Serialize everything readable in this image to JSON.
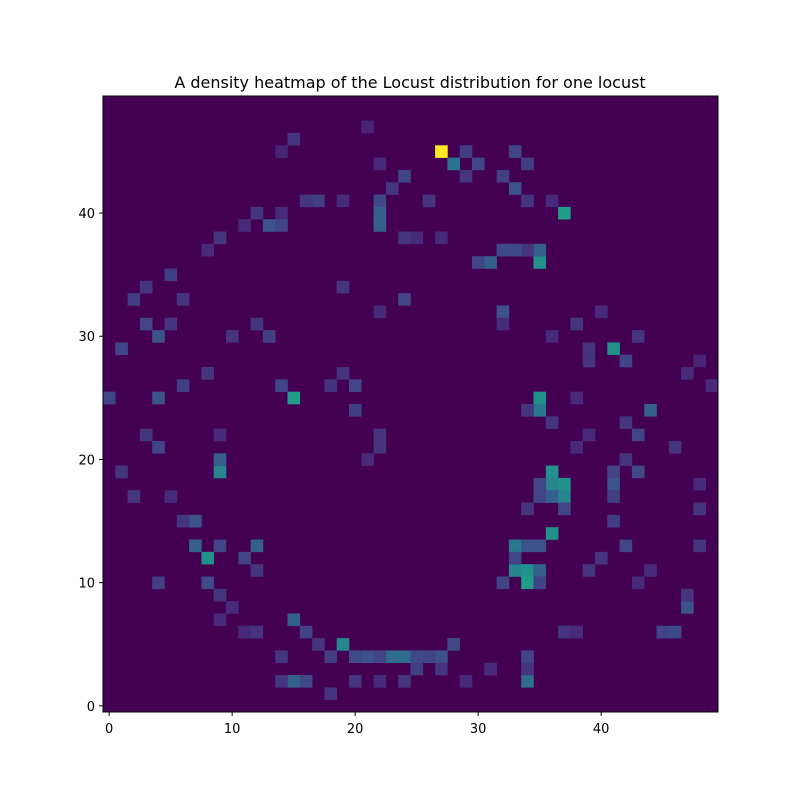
{
  "chart_data": {
    "type": "heatmap",
    "title": "A density heatmap of the Locust distribution for one locust",
    "xlabel": "",
    "ylabel": "",
    "grid_size": [
      50,
      50
    ],
    "xlim": [
      -0.5,
      49.5
    ],
    "ylim": [
      -0.5,
      49.5
    ],
    "xticks": [
      0,
      10,
      20,
      30,
      40
    ],
    "yticks": [
      0,
      10,
      20,
      30,
      40
    ],
    "colormap": "viridis",
    "value_range": [
      0,
      1
    ],
    "background_value": 0,
    "grid": false,
    "colors": {
      "low": "#440154",
      "high": "#fde725"
    },
    "cells": [
      [
        27,
        45,
        1.0
      ],
      [
        28,
        44,
        0.38
      ],
      [
        29,
        45,
        0.18
      ],
      [
        30,
        44,
        0.2
      ],
      [
        33,
        45,
        0.2
      ],
      [
        34,
        44,
        0.18
      ],
      [
        29,
        43,
        0.15
      ],
      [
        32,
        43,
        0.18
      ],
      [
        24,
        43,
        0.2
      ],
      [
        23,
        42,
        0.15
      ],
      [
        33,
        42,
        0.25
      ],
      [
        22,
        41,
        0.22
      ],
      [
        22,
        40,
        0.3
      ],
      [
        22,
        39,
        0.3
      ],
      [
        19,
        41,
        0.12
      ],
      [
        26,
        41,
        0.15
      ],
      [
        37,
        40,
        0.55
      ],
      [
        34,
        41,
        0.15
      ],
      [
        36,
        41,
        0.12
      ],
      [
        35,
        36,
        0.5
      ],
      [
        35,
        37,
        0.3
      ],
      [
        34,
        37,
        0.15
      ],
      [
        31,
        36,
        0.3
      ],
      [
        32,
        37,
        0.22
      ],
      [
        33,
        37,
        0.22
      ],
      [
        30,
        36,
        0.2
      ],
      [
        24,
        38,
        0.15
      ],
      [
        25,
        38,
        0.12
      ],
      [
        27,
        38,
        0.12
      ],
      [
        17,
        41,
        0.18
      ],
      [
        16,
        41,
        0.15
      ],
      [
        14,
        40,
        0.12
      ],
      [
        13,
        39,
        0.25
      ],
      [
        14,
        39,
        0.2
      ],
      [
        12,
        40,
        0.15
      ],
      [
        11,
        39,
        0.12
      ],
      [
        9,
        38,
        0.15
      ],
      [
        8,
        37,
        0.12
      ],
      [
        15,
        46,
        0.15
      ],
      [
        14,
        45,
        0.1
      ],
      [
        22,
        44,
        0.12
      ],
      [
        21,
        47,
        0.1
      ],
      [
        24,
        33,
        0.2
      ],
      [
        32,
        32,
        0.25
      ],
      [
        19,
        34,
        0.15
      ],
      [
        22,
        32,
        0.12
      ],
      [
        41,
        29,
        0.5
      ],
      [
        42,
        28,
        0.2
      ],
      [
        43,
        30,
        0.15
      ],
      [
        39,
        29,
        0.15
      ],
      [
        47,
        27,
        0.12
      ],
      [
        48,
        28,
        0.1
      ],
      [
        35,
        25,
        0.5
      ],
      [
        35,
        24,
        0.4
      ],
      [
        34,
        24,
        0.15
      ],
      [
        36,
        23,
        0.15
      ],
      [
        44,
        24,
        0.3
      ],
      [
        43,
        22,
        0.2
      ],
      [
        46,
        21,
        0.15
      ],
      [
        42,
        23,
        0.15
      ],
      [
        15,
        25,
        0.55
      ],
      [
        14,
        26,
        0.2
      ],
      [
        18,
        26,
        0.15
      ],
      [
        19,
        27,
        0.15
      ],
      [
        20,
        26,
        0.2
      ],
      [
        20,
        24,
        0.18
      ],
      [
        4,
        25,
        0.25
      ],
      [
        0,
        25,
        0.2
      ],
      [
        6,
        26,
        0.18
      ],
      [
        9,
        19,
        0.45
      ],
      [
        9,
        20,
        0.3
      ],
      [
        9,
        22,
        0.12
      ],
      [
        3,
        22,
        0.15
      ],
      [
        4,
        21,
        0.2
      ],
      [
        22,
        21,
        0.15
      ],
      [
        22,
        22,
        0.15
      ],
      [
        21,
        20,
        0.12
      ],
      [
        36,
        19,
        0.5
      ],
      [
        36,
        18,
        0.45
      ],
      [
        37,
        18,
        0.5
      ],
      [
        37,
        17,
        0.45
      ],
      [
        36,
        17,
        0.3
      ],
      [
        35,
        17,
        0.2
      ],
      [
        35,
        18,
        0.2
      ],
      [
        34,
        16,
        0.15
      ],
      [
        37,
        16,
        0.2
      ],
      [
        41,
        19,
        0.2
      ],
      [
        41,
        18,
        0.25
      ],
      [
        41,
        17,
        0.18
      ],
      [
        43,
        19,
        0.22
      ],
      [
        42,
        20,
        0.15
      ],
      [
        41,
        15,
        0.18
      ],
      [
        36,
        14,
        0.5
      ],
      [
        35,
        13,
        0.25
      ],
      [
        33,
        13,
        0.4
      ],
      [
        34,
        13,
        0.25
      ],
      [
        42,
        13,
        0.2
      ],
      [
        33,
        11,
        0.45
      ],
      [
        34,
        11,
        0.5
      ],
      [
        35,
        11,
        0.3
      ],
      [
        34,
        10,
        0.55
      ],
      [
        35,
        10,
        0.2
      ],
      [
        32,
        10,
        0.2
      ],
      [
        33,
        12,
        0.2
      ],
      [
        39,
        11,
        0.15
      ],
      [
        40,
        12,
        0.15
      ],
      [
        8,
        12,
        0.5
      ],
      [
        7,
        13,
        0.3
      ],
      [
        9,
        13,
        0.2
      ],
      [
        12,
        13,
        0.3
      ],
      [
        11,
        12,
        0.2
      ],
      [
        7,
        15,
        0.25
      ],
      [
        8,
        10,
        0.22
      ],
      [
        9,
        9,
        0.15
      ],
      [
        4,
        10,
        0.18
      ],
      [
        12,
        11,
        0.15
      ],
      [
        19,
        5,
        0.45
      ],
      [
        20,
        4,
        0.22
      ],
      [
        21,
        4,
        0.25
      ],
      [
        23,
        4,
        0.35
      ],
      [
        24,
        4,
        0.35
      ],
      [
        22,
        4,
        0.2
      ],
      [
        25,
        4,
        0.22
      ],
      [
        26,
        4,
        0.2
      ],
      [
        27,
        4,
        0.25
      ],
      [
        28,
        5,
        0.22
      ],
      [
        15,
        7,
        0.3
      ],
      [
        16,
        6,
        0.2
      ],
      [
        17,
        5,
        0.15
      ],
      [
        18,
        4,
        0.18
      ],
      [
        14,
        4,
        0.15
      ],
      [
        15,
        2,
        0.3
      ],
      [
        16,
        2,
        0.22
      ],
      [
        14,
        2,
        0.15
      ],
      [
        18,
        1,
        0.15
      ],
      [
        20,
        2,
        0.15
      ],
      [
        34,
        2,
        0.35
      ],
      [
        34,
        4,
        0.2
      ],
      [
        34,
        3,
        0.15
      ],
      [
        31,
        3,
        0.12
      ],
      [
        47,
        8,
        0.25
      ],
      [
        46,
        6,
        0.22
      ],
      [
        45,
        6,
        0.2
      ],
      [
        47,
        9,
        0.15
      ],
      [
        48,
        13,
        0.15
      ],
      [
        48,
        16,
        0.15
      ],
      [
        48,
        18,
        0.12
      ],
      [
        49,
        26,
        0.12
      ],
      [
        2,
        33,
        0.18
      ],
      [
        3,
        31,
        0.2
      ],
      [
        4,
        30,
        0.25
      ],
      [
        5,
        31,
        0.15
      ],
      [
        1,
        29,
        0.2
      ],
      [
        5,
        35,
        0.18
      ],
      [
        6,
        33,
        0.15
      ],
      [
        3,
        34,
        0.15
      ],
      [
        2,
        17,
        0.15
      ],
      [
        1,
        19,
        0.15
      ],
      [
        5,
        17,
        0.12
      ],
      [
        6,
        15,
        0.15
      ],
      [
        10,
        30,
        0.15
      ],
      [
        8,
        27,
        0.15
      ],
      [
        12,
        31,
        0.15
      ],
      [
        13,
        30,
        0.18
      ],
      [
        38,
        31,
        0.15
      ],
      [
        40,
        32,
        0.12
      ],
      [
        36,
        30,
        0.12
      ],
      [
        32,
        31,
        0.12
      ],
      [
        39,
        28,
        0.15
      ],
      [
        38,
        25,
        0.12
      ],
      [
        38,
        21,
        0.12
      ],
      [
        39,
        22,
        0.12
      ],
      [
        43,
        10,
        0.12
      ],
      [
        44,
        11,
        0.12
      ],
      [
        37,
        6,
        0.15
      ],
      [
        38,
        6,
        0.12
      ],
      [
        10,
        8,
        0.12
      ],
      [
        12,
        6,
        0.15
      ],
      [
        11,
        6,
        0.12
      ],
      [
        9,
        7,
        0.12
      ],
      [
        25,
        3,
        0.18
      ],
      [
        24,
        2,
        0.15
      ],
      [
        22,
        2,
        0.12
      ],
      [
        27,
        3,
        0.15
      ],
      [
        29,
        2,
        0.12
      ]
    ]
  }
}
